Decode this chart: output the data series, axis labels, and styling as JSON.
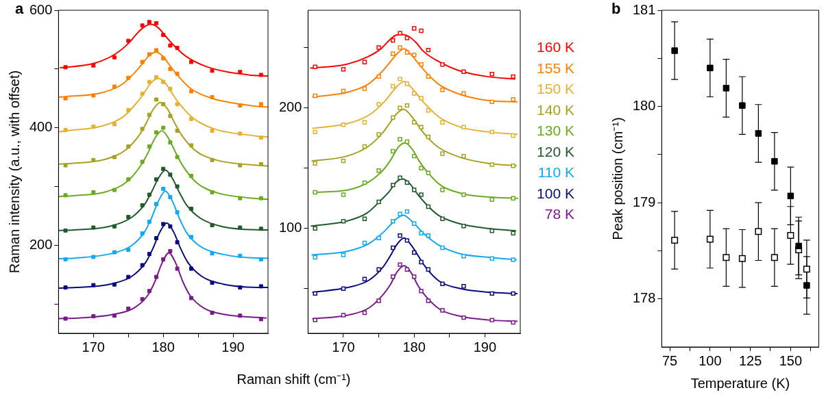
{
  "chart_data": [
    {
      "type": "scatter",
      "annotations": [
        "a"
      ],
      "xlabel": "Raman shift (cm⁻¹)",
      "ylabel": "Raman intensity (a.u., with offset)",
      "xlim": [
        165,
        195
      ],
      "xticks": [
        170,
        {
          "value": 175,
          "label": null
        },
        180,
        {
          "value": 185,
          "label": null
        },
        190
      ],
      "ylim": [
        50,
        600
      ],
      "yticks": [
        {
          "value": 100,
          "label": null
        },
        200,
        {
          "value": 300,
          "label": null
        },
        400,
        {
          "value": 500,
          "label": null
        },
        600
      ],
      "marker": "square",
      "x": [
        166,
        170,
        173,
        175,
        177,
        178,
        179,
        180,
        181,
        182,
        184,
        187,
        191,
        194
      ],
      "series": [
        {
          "color": "#ff0000",
          "values": [
            503,
            506,
            520,
            548,
            574,
            580,
            578,
            558,
            540,
            536,
            512,
            497,
            495,
            490
          ]
        },
        {
          "type": "line",
          "marker": "none",
          "color": "#ff0000",
          "x": [
            165.2,
            170.2,
            173.2,
            175.2,
            176.2,
            177.2,
            178.2,
            179.2,
            180.2,
            181.2,
            183.2,
            186.2,
            192.2,
            195
          ],
          "values": [
            502,
            510,
            526,
            546,
            560,
            571,
            576,
            571,
            558,
            544,
            522,
            504,
            490,
            488
          ]
        },
        {
          "color": "#ff7f00",
          "values": [
            450,
            455,
            470,
            485,
            512,
            525,
            532,
            518,
            500,
            492,
            462,
            452,
            438,
            440
          ]
        },
        {
          "type": "line",
          "marker": "none",
          "color": "#ff7f00",
          "x": [
            165,
            166,
            171,
            174,
            176,
            177,
            178,
            179,
            180,
            181,
            182,
            184,
            187,
            193,
            195
          ],
          "values": [
            452,
            453,
            459,
            473,
            495,
            509,
            523,
            529,
            521,
            505,
            490,
            466,
            450,
            437,
            435
          ]
        },
        {
          "color": "#e6b030",
          "values": [
            396,
            402,
            406,
            430,
            458,
            478,
            486,
            478,
            466,
            440,
            415,
            395,
            390,
            383
          ]
        },
        {
          "type": "line",
          "marker": "none",
          "color": "#e6b030",
          "x": [
            165,
            166.3,
            171.3,
            174.3,
            176.3,
            177.3,
            178.3,
            179.3,
            180.3,
            181.3,
            182.3,
            184.3,
            187.3,
            193.3,
            195
          ],
          "values": [
            393,
            395,
            403,
            419,
            444,
            460,
            477,
            484,
            476,
            458,
            441,
            416,
            398,
            386,
            384
          ]
        },
        {
          "color": "#a8a020",
          "values": [
            336,
            345,
            350,
            368,
            398,
            422,
            448,
            440,
            420,
            395,
            370,
            345,
            336,
            338
          ]
        },
        {
          "type": "line",
          "marker": "none",
          "color": "#a8a020",
          "x": [
            165,
            166.6,
            171.6,
            174.6,
            176.6,
            177.6,
            178.6,
            179.6,
            180.6,
            181.6,
            182.6,
            184.6,
            187.6,
            193.6,
            195
          ],
          "values": [
            338,
            339,
            346,
            362,
            388,
            409,
            432,
            443,
            432,
            409,
            388,
            361,
            345,
            336,
            335
          ]
        },
        {
          "color": "#6aaa20",
          "values": [
            285,
            290,
            294,
            312,
            342,
            368,
            392,
            400,
            375,
            350,
            318,
            290,
            280,
            280
          ]
        },
        {
          "type": "line",
          "marker": "none",
          "color": "#6aaa20",
          "x": [
            165,
            166.8,
            171.8,
            174.8,
            176.8,
            177.8,
            178.8,
            179.8,
            180.8,
            181.8,
            182.8,
            184.8,
            187.8,
            193.8,
            195
          ],
          "values": [
            283,
            284,
            291,
            308,
            336,
            357,
            382,
            395,
            381,
            357,
            335,
            306,
            289,
            279,
            278
          ]
        },
        {
          "color": "#1f5a2a",
          "values": [
            225,
            230,
            232,
            248,
            268,
            286,
            312,
            330,
            320,
            300,
            262,
            234,
            230,
            228
          ]
        },
        {
          "type": "line",
          "marker": "none",
          "color": "#1f5a2a",
          "x": [
            165,
            167.3,
            172.3,
            175.3,
            177.3,
            178.3,
            179.3,
            180.3,
            181.3,
            182.3,
            183.3,
            185.3,
            188.3,
            194.3,
            195
          ],
          "values": [
            225,
            226,
            232,
            246,
            269,
            290,
            314,
            328,
            314,
            290,
            269,
            246,
            232,
            226,
            226
          ]
        },
        {
          "color": "#10a8f0",
          "values": [
            176,
            180,
            188,
            192,
            220,
            240,
            270,
            296,
            282,
            256,
            214,
            186,
            182,
            176
          ]
        },
        {
          "type": "line",
          "marker": "none",
          "color": "#10a8f0",
          "x": [
            165,
            167.3,
            172.3,
            175.3,
            177.3,
            178.3,
            179.3,
            180.3,
            181.3,
            182.3,
            183.3,
            185.3,
            188.3,
            194.3,
            195
          ],
          "values": [
            177,
            178,
            185,
            198,
            222,
            246,
            275,
            292,
            275,
            246,
            222,
            198,
            185,
            178,
            178
          ]
        },
        {
          "color": "#0a0a80",
          "values": [
            128,
            132,
            133,
            146,
            166,
            185,
            212,
            236,
            232,
            205,
            160,
            136,
            128,
            130
          ]
        },
        {
          "type": "line",
          "marker": "none",
          "color": "#0a0a80",
          "x": [
            165,
            167.5,
            172.5,
            175.5,
            177.5,
            178.5,
            179.5,
            180.5,
            181.5,
            182.5,
            183.5,
            185.5,
            188.5,
            194.5,
            195
          ],
          "values": [
            127,
            128,
            134,
            147,
            171,
            194,
            222,
            238,
            222,
            194,
            171,
            147,
            134,
            128,
            128
          ]
        },
        {
          "color": "#7a1a8a",
          "values": [
            75,
            79,
            80,
            92,
            108,
            122,
            146,
            176,
            190,
            160,
            110,
            85,
            80,
            74
          ]
        },
        {
          "type": "line",
          "marker": "none",
          "color": "#7a1a8a",
          "x": [
            165,
            167.8,
            172.8,
            175.8,
            177.8,
            178.8,
            179.8,
            180.8,
            181.8,
            182.8,
            183.8,
            185.8,
            188.8,
            194.8
          ],
          "values": [
            75,
            76,
            82,
            93,
            115,
            138,
            169,
            187,
            169,
            138,
            115,
            93,
            82,
            76
          ]
        }
      ]
    },
    {
      "type": "scatter",
      "legend": "right",
      "xlim": [
        165,
        195
      ],
      "xticks": [
        170,
        {
          "value": 175,
          "label": null
        },
        180,
        {
          "value": 185,
          "label": null
        },
        190
      ],
      "ylim": [
        13,
        281
      ],
      "yticks": [
        {
          "value": 50,
          "label": null
        },
        100,
        {
          "value": 150,
          "label": null
        },
        200,
        {
          "value": 250,
          "label": null
        }
      ],
      "marker": "square-open",
      "x": [
        166,
        170,
        173,
        175,
        177,
        178,
        179,
        180,
        181,
        182,
        184,
        187,
        191,
        194
      ],
      "series": [
        {
          "color": "#ff0000",
          "values": [
            234,
            232,
            238,
            250,
            256,
            262,
            258,
            266,
            264,
            248,
            236,
            230,
            228,
            226
          ]
        },
        {
          "type": "line",
          "marker": "none",
          "name": "160 K",
          "color": "#ff0000",
          "x": [
            165.3,
            170.3,
            173.3,
            175.3,
            176.3,
            177.3,
            178.3,
            179.3,
            180.3,
            181.3,
            183.3,
            186.3,
            190.3,
            194.3
          ],
          "values": [
            233,
            236,
            242,
            249,
            255,
            260,
            261,
            259,
            254,
            247,
            239,
            231,
            226,
            224
          ]
        },
        {
          "color": "#ff7f00",
          "values": [
            210,
            214,
            216,
            226,
            245,
            250,
            246,
            244,
            236,
            226,
            215,
            212,
            205,
            207
          ]
        },
        {
          "type": "line",
          "marker": "none",
          "name": "155 K",
          "color": "#ff7f00",
          "x": [
            165.6,
            170.6,
            173.6,
            175.6,
            176.6,
            177.6,
            178.6,
            179.6,
            180.6,
            181.6,
            183.6,
            186.6,
            190.6,
            194.6
          ],
          "values": [
            209,
            213,
            220,
            231,
            238,
            245,
            249,
            244,
            237,
            230,
            219,
            211,
            206,
            205
          ]
        },
        {
          "color": "#e6b030",
          "values": [
            180,
            186,
            188,
            203,
            218,
            224,
            220,
            212,
            208,
            198,
            188,
            184,
            180,
            177
          ]
        },
        {
          "type": "line",
          "marker": "none",
          "name": "150 K",
          "color": "#e6b030",
          "x": [
            165.6,
            170.6,
            173.6,
            175.6,
            176.6,
            177.6,
            178.6,
            179.6,
            180.6,
            181.6,
            183.6,
            186.6,
            190.6,
            194.6
          ],
          "values": [
            183,
            187,
            194,
            204,
            211,
            218,
            222,
            217,
            210,
            203,
            192,
            184,
            180,
            178
          ]
        },
        {
          "color": "#a8a020",
          "values": [
            154,
            156,
            168,
            178,
            192,
            200,
            202,
            188,
            184,
            176,
            162,
            160,
            153,
            152
          ]
        },
        {
          "type": "line",
          "marker": "none",
          "name": "140 K",
          "color": "#a8a020",
          "x": [
            165.5,
            170.5,
            173.5,
            175.5,
            176.5,
            177.5,
            178.5,
            179.5,
            180.5,
            181.5,
            183.5,
            186.5,
            190.5,
            194.5
          ],
          "values": [
            156,
            160,
            168,
            179,
            187,
            195,
            199,
            194,
            186,
            178,
            167,
            159,
            154,
            152
          ]
        },
        {
          "color": "#6aaa20",
          "values": [
            130,
            128,
            138,
            148,
            164,
            174,
            172,
            160,
            150,
            146,
            132,
            128,
            124,
            125
          ]
        },
        {
          "type": "line",
          "marker": "none",
          "name": "130 K",
          "color": "#6aaa20",
          "x": [
            165.7,
            170.7,
            173.7,
            175.7,
            176.7,
            177.7,
            178.7,
            179.7,
            180.7,
            181.7,
            183.7,
            186.7,
            190.7,
            194.7
          ],
          "values": [
            130,
            132,
            139,
            149,
            157,
            167,
            171,
            166,
            156,
            148,
            136,
            129,
            126,
            125
          ]
        },
        {
          "color": "#1f5a2a",
          "values": [
            100,
            106,
            108,
            122,
            136,
            142,
            138,
            132,
            128,
            118,
            108,
            102,
            98,
            96
          ]
        },
        {
          "type": "line",
          "marker": "none",
          "name": "120 K",
          "color": "#1f5a2a",
          "x": [
            165.4,
            170.4,
            173.4,
            175.4,
            176.4,
            177.4,
            178.4,
            179.4,
            180.4,
            181.4,
            183.4,
            186.4,
            190.4,
            194.4
          ],
          "values": [
            102,
            106,
            113,
            124,
            130,
            138,
            141,
            137,
            129,
            122,
            111,
            104,
            100,
            98
          ]
        },
        {
          "color": "#10a8f0",
          "values": [
            76,
            78,
            88,
            92,
            106,
            112,
            114,
            104,
            96,
            94,
            84,
            77,
            75,
            74
          ]
        },
        {
          "type": "line",
          "marker": "none",
          "name": "110 K",
          "color": "#10a8f0",
          "x": [
            165.5,
            170.5,
            173.5,
            175.5,
            176.5,
            177.5,
            178.5,
            179.5,
            180.5,
            181.5,
            183.5,
            186.5,
            190.5,
            194.5
          ],
          "values": [
            78,
            81,
            87,
            96,
            102,
            108,
            111,
            107,
            101,
            95,
            86,
            79,
            76,
            74
          ]
        },
        {
          "color": "#0a0a80",
          "values": [
            46,
            50,
            58,
            66,
            84,
            94,
            90,
            80,
            72,
            66,
            54,
            52,
            46,
            46
          ]
        },
        {
          "type": "line",
          "marker": "none",
          "name": "100 K",
          "color": "#0a0a80",
          "x": [
            165.6,
            170.6,
            173.6,
            175.6,
            176.6,
            177.6,
            178.6,
            179.6,
            180.6,
            181.6,
            183.6,
            186.6,
            190.6,
            194.6
          ],
          "values": [
            47,
            51,
            57,
            68,
            77,
            87,
            92,
            86,
            77,
            68,
            56,
            50,
            47,
            46
          ]
        },
        {
          "color": "#7a1a8a",
          "values": [
            24,
            28,
            30,
            40,
            60,
            70,
            66,
            60,
            48,
            40,
            32,
            26,
            24,
            22
          ]
        },
        {
          "type": "line",
          "marker": "none",
          "name": "78 K",
          "color": "#7a1a8a",
          "x": [
            165.6,
            170.6,
            173.6,
            175.6,
            176.6,
            177.6,
            178.6,
            179.6,
            180.6,
            181.6,
            183.6,
            186.6,
            190.6,
            194.6
          ],
          "values": [
            25,
            28,
            34,
            45,
            53,
            64,
            69,
            63,
            52,
            44,
            33,
            27,
            24,
            23
          ]
        }
      ]
    },
    {
      "type": "scatter",
      "annotations": [
        "b"
      ],
      "xlabel": "Temperature (K)",
      "ylabel": "Peak position (cm⁻¹)",
      "xlim": [
        70,
        167.5
      ],
      "xticks": [
        75,
        {
          "value": 87.5,
          "label": null
        },
        100,
        {
          "value": 112.5,
          "label": null
        },
        125,
        {
          "value": 137.5,
          "label": null
        },
        150,
        {
          "value": 162.5,
          "label": null
        }
      ],
      "ylim": [
        177.5,
        181
      ],
      "yticks": [
        178,
        {
          "value": 178.5,
          "label": null
        },
        179,
        {
          "value": 179.5,
          "label": null
        },
        180,
        {
          "value": 180.5,
          "label": null
        },
        181
      ],
      "x": [
        78,
        100,
        110,
        120,
        130,
        140,
        150,
        155,
        160
      ],
      "series": [
        {
          "marker": "square",
          "color": "#000000",
          "values": [
            180.58,
            180.4,
            180.19,
            180.01,
            179.72,
            179.43,
            179.07,
            178.55,
            178.14
          ],
          "errors": [
            0.3,
            0.3,
            0.3,
            0.3,
            0.3,
            0.3,
            0.3,
            0.3,
            0.3
          ]
        },
        {
          "marker": "square-open",
          "color": "#000000",
          "values": [
            178.61,
            178.62,
            178.43,
            178.42,
            178.7,
            178.43,
            178.66,
            178.51,
            178.31
          ],
          "errors": [
            0.3,
            0.3,
            0.3,
            0.3,
            0.3,
            0.3,
            0.3,
            0.3,
            0.3
          ]
        }
      ]
    }
  ]
}
